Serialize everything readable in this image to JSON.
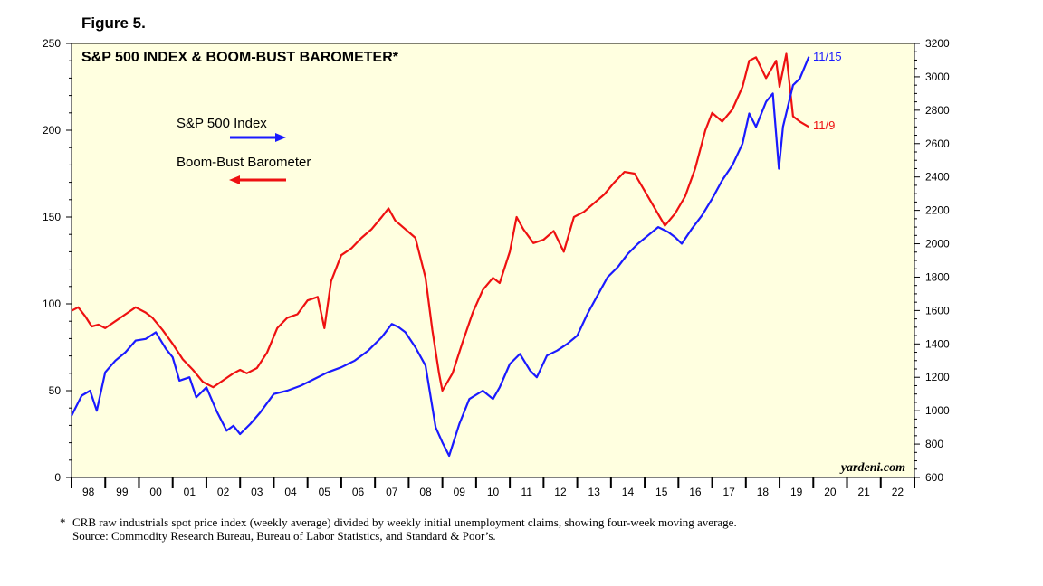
{
  "figure_label": "Figure 5.",
  "watermark": "yardeni.com",
  "footnote": "CRB raw industrials spot price index (weekly average) divided by weekly initial unemployment claims, showing four-week moving average.",
  "footnote_mark": "*",
  "source": "Source: Commodity Research Bureau, Bureau of Labor Statistics, and Standard & Poor’s.",
  "chart_data": {
    "type": "line",
    "title": "S&P 500 INDEX & BOOM-BUST BAROMETER*",
    "legend": [
      {
        "label": "S&P 500 Index",
        "color": "#1a1aff",
        "arrow": "right"
      },
      {
        "label": "Boom-Bust Barometer",
        "color": "#ee1111",
        "arrow": "left"
      }
    ],
    "left_axis": {
      "min": 0,
      "max": 250,
      "ticks": [
        0,
        50,
        100,
        150,
        200,
        250
      ]
    },
    "right_axis": {
      "min": 600,
      "max": 3200,
      "ticks": [
        600,
        800,
        1000,
        1200,
        1400,
        1600,
        1800,
        2000,
        2200,
        2400,
        2600,
        2800,
        3000,
        3200
      ]
    },
    "x_axis": {
      "start": 1998,
      "end": 2023,
      "labels": [
        "98",
        "99",
        "00",
        "01",
        "02",
        "03",
        "04",
        "05",
        "06",
        "07",
        "08",
        "09",
        "10",
        "11",
        "12",
        "13",
        "14",
        "15",
        "16",
        "17",
        "18",
        "19",
        "20",
        "21",
        "22"
      ]
    },
    "end_labels": {
      "sp500": "11/15",
      "barometer": "11/9"
    },
    "series": [
      {
        "name": "Boom-Bust Barometer",
        "axis": "left",
        "color": "#ee1111",
        "x": [
          1998.0,
          1998.2,
          1998.4,
          1998.6,
          1998.8,
          1999.0,
          1999.3,
          1999.6,
          1999.9,
          2000.2,
          2000.4,
          2000.7,
          2001.0,
          2001.3,
          2001.6,
          2001.9,
          2002.2,
          2002.5,
          2002.8,
          2003.0,
          2003.2,
          2003.5,
          2003.8,
          2004.1,
          2004.4,
          2004.7,
          2005.0,
          2005.3,
          2005.5,
          2005.7,
          2006.0,
          2006.3,
          2006.6,
          2006.9,
          2007.2,
          2007.4,
          2007.6,
          2007.9,
          2008.2,
          2008.5,
          2008.7,
          2008.9,
          2009.0,
          2009.3,
          2009.6,
          2009.9,
          2010.2,
          2010.5,
          2010.7,
          2011.0,
          2011.2,
          2011.4,
          2011.7,
          2012.0,
          2012.3,
          2012.6,
          2012.9,
          2013.2,
          2013.5,
          2013.8,
          2014.1,
          2014.4,
          2014.7,
          2015.0,
          2015.3,
          2015.6,
          2015.9,
          2016.2,
          2016.5,
          2016.8,
          2017.0,
          2017.3,
          2017.6,
          2017.9,
          2018.1,
          2018.3,
          2018.6,
          2018.9,
          2019.0,
          2019.2,
          2019.4,
          2019.6,
          2019.86
        ],
        "values": [
          96,
          98,
          93,
          87,
          88,
          86,
          90,
          94,
          98,
          95,
          92,
          85,
          77,
          68,
          62,
          55,
          52,
          56,
          60,
          62,
          60,
          63,
          72,
          86,
          92,
          94,
          102,
          104,
          86,
          113,
          128,
          132,
          138,
          143,
          150,
          155,
          148,
          143,
          138,
          115,
          85,
          60,
          50,
          60,
          78,
          95,
          108,
          115,
          112,
          130,
          150,
          143,
          135,
          137,
          142,
          130,
          150,
          153,
          158,
          163,
          170,
          176,
          175,
          165,
          155,
          145,
          152,
          162,
          178,
          200,
          210,
          205,
          212,
          225,
          240,
          242,
          230,
          240,
          225,
          244,
          208,
          205,
          202
        ]
      },
      {
        "name": "S&P 500 Index",
        "axis": "right",
        "color": "#1a1aff",
        "x": [
          1998.0,
          1998.3,
          1998.55,
          1998.75,
          1999.0,
          1999.3,
          1999.6,
          1999.9,
          2000.2,
          2000.5,
          2000.8,
          2001.0,
          2001.2,
          2001.5,
          2001.7,
          2002.0,
          2002.3,
          2002.6,
          2002.8,
          2003.0,
          2003.3,
          2003.6,
          2004.0,
          2004.4,
          2004.8,
          2005.2,
          2005.6,
          2006.0,
          2006.4,
          2006.8,
          2007.2,
          2007.5,
          2007.7,
          2007.9,
          2008.2,
          2008.5,
          2008.8,
          2009.0,
          2009.2,
          2009.5,
          2009.8,
          2010.2,
          2010.5,
          2010.7,
          2011.0,
          2011.3,
          2011.6,
          2011.8,
          2012.1,
          2012.4,
          2012.7,
          2013.0,
          2013.3,
          2013.6,
          2013.9,
          2014.2,
          2014.5,
          2014.8,
          2015.1,
          2015.4,
          2015.7,
          2015.9,
          2016.1,
          2016.4,
          2016.7,
          2017.0,
          2017.3,
          2017.6,
          2017.9,
          2018.1,
          2018.3,
          2018.6,
          2018.8,
          2018.98,
          2019.1,
          2019.4,
          2019.6,
          2019.87
        ],
        "values": [
          970,
          1090,
          1120,
          1000,
          1230,
          1300,
          1350,
          1420,
          1430,
          1470,
          1370,
          1320,
          1180,
          1200,
          1080,
          1140,
          1000,
          880,
          910,
          860,
          920,
          990,
          1100,
          1120,
          1150,
          1190,
          1230,
          1260,
          1300,
          1360,
          1440,
          1520,
          1500,
          1470,
          1380,
          1270,
          900,
          810,
          730,
          920,
          1070,
          1120,
          1070,
          1140,
          1280,
          1340,
          1240,
          1200,
          1330,
          1360,
          1400,
          1450,
          1580,
          1690,
          1800,
          1860,
          1940,
          2000,
          2050,
          2100,
          2070,
          2040,
          2000,
          2090,
          2170,
          2270,
          2380,
          2470,
          2600,
          2780,
          2700,
          2850,
          2900,
          2450,
          2700,
          2950,
          2990,
          3120
        ]
      }
    ]
  }
}
